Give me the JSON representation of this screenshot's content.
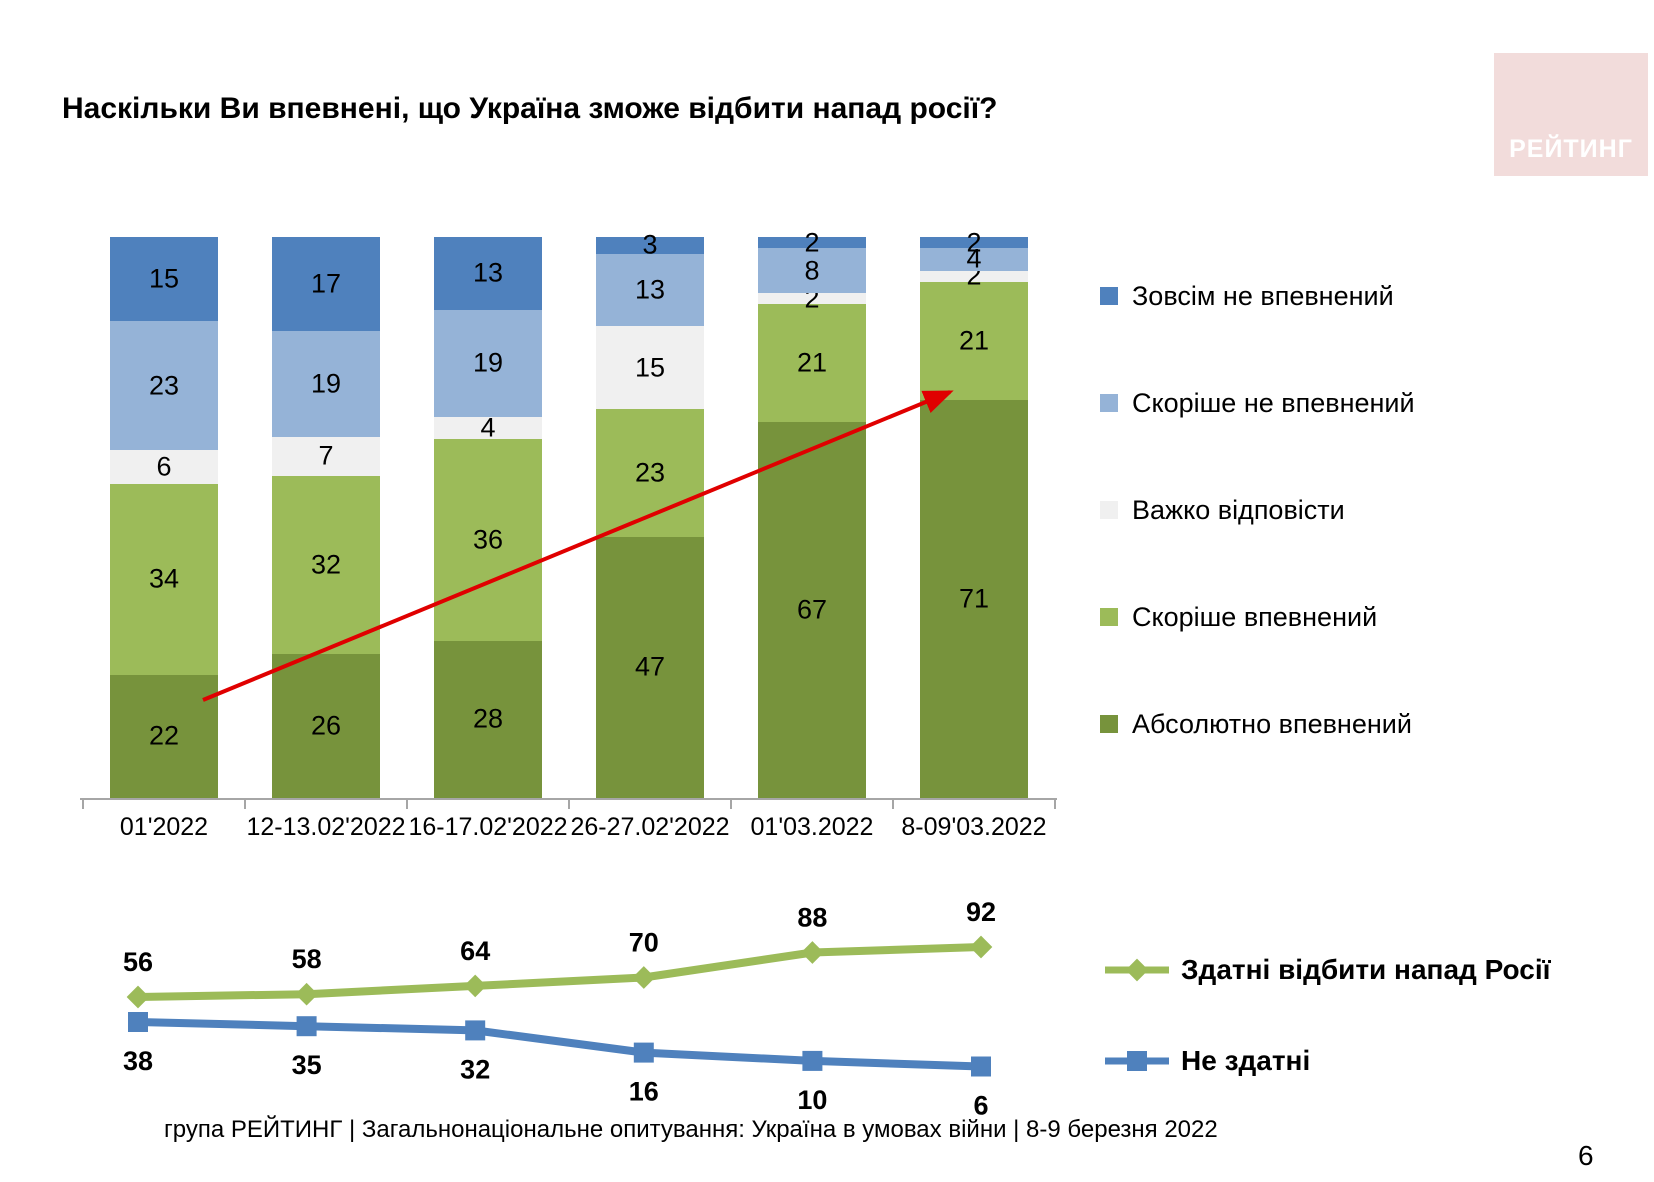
{
  "slide": {
    "title": "Наскільки Ви впевнені, що Україна зможе відбити напад росії?",
    "logo_text": "РЕЙТИНГ",
    "footer_text": "група РЕЙТИНГ | Загальнонаціональне опитування: Україна в умовах війни | 8-9 березня 2022",
    "page_number": "6"
  },
  "colors": {
    "logo_bg": "#F2DCDB",
    "axis": "#A6A6A6",
    "arrow": "#E00000",
    "label_text": "#000000"
  },
  "legend": [
    {
      "label": "Зовсім не впевнений",
      "color": "#4F81BD"
    },
    {
      "label": "Скоріше не впевнений",
      "color": "#95B3D7"
    },
    {
      "label": "Важко відповісти",
      "color": "#F0F0F0"
    },
    {
      "label": "Скоріше впевнений",
      "color": "#9CBB59"
    },
    {
      "label": "Абсолютно впевнений",
      "color": "#77933C"
    }
  ],
  "chart_data": [
    {
      "type": "bar",
      "stacked": true,
      "value_labels": "inside",
      "categories": [
        "01'2022",
        "12-13.02'2022",
        "16-17.02'2022",
        "26-27.02'2022",
        "01'03.2022",
        "8-09'03.2022"
      ],
      "series": [
        {
          "name": "Абсолютно впевнений",
          "color": "#77933C",
          "values": [
            22,
            26,
            28,
            47,
            67,
            71
          ]
        },
        {
          "name": "Скоріше впевнений",
          "color": "#9CBB59",
          "values": [
            34,
            32,
            36,
            23,
            21,
            21
          ]
        },
        {
          "name": "Важко відповісти",
          "color": "#F0F0F0",
          "values": [
            6,
            7,
            4,
            15,
            2,
            2
          ]
        },
        {
          "name": "Скоріше не впевнений",
          "color": "#95B3D7",
          "values": [
            23,
            19,
            19,
            13,
            8,
            4
          ]
        },
        {
          "name": "Зовсім не впевнений",
          "color": "#4F81BD",
          "values": [
            15,
            17,
            13,
            3,
            2,
            2
          ]
        }
      ],
      "annotation": {
        "type": "arrow",
        "color": "#E00000"
      }
    },
    {
      "type": "line",
      "grid": false,
      "legend_position": "right",
      "categories": [
        "01'2022",
        "12-13.02'2022",
        "16-17.02'2022",
        "26-27.02'2022",
        "01'03.2022",
        "8-09'03.2022"
      ],
      "series": [
        {
          "name": "Здатні відбити напад Росії",
          "color": "#9CBB59",
          "marker": "diamond",
          "values": [
            56,
            58,
            64,
            70,
            88,
            92
          ]
        },
        {
          "name": "Не здатні",
          "color": "#4F81BD",
          "marker": "square",
          "values": [
            38,
            35,
            32,
            16,
            10,
            6
          ]
        }
      ]
    }
  ]
}
